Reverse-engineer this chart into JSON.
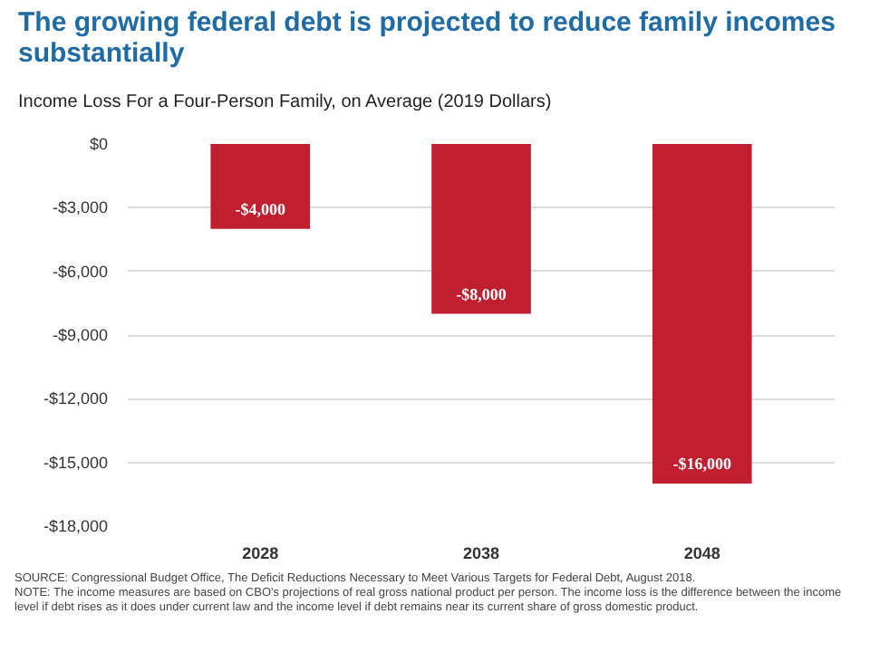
{
  "chart_data": {
    "type": "bar",
    "title": "The growing federal debt is projected to reduce family incomes substantially",
    "subtitle": "Income Loss For a Four-Person Family, on Average (2019 Dollars)",
    "categories": [
      "2028",
      "2038",
      "2048"
    ],
    "values": [
      -4000,
      -8000,
      -16000
    ],
    "value_labels": [
      "-$4,000",
      "-$8,000",
      "-$16,000"
    ],
    "color": "#c01f2f",
    "ylim": [
      -18000,
      0
    ],
    "yticks": [
      {
        "value": -18000,
        "label": "-$18,000"
      },
      {
        "value": -15000,
        "label": "-$15,000"
      },
      {
        "value": -12000,
        "label": "-$12,000"
      },
      {
        "value": -9000,
        "label": "-$9,000"
      },
      {
        "value": -6000,
        "label": "-$6,000"
      },
      {
        "value": -3000,
        "label": "-$3,000"
      },
      {
        "value": 0,
        "label": "$0"
      }
    ],
    "grid": "y",
    "annotations": [
      "SOURCE: Congressional Budget Office, The Deficit Reductions Necessary to Meet Various Targets for Federal Debt, August 2018.",
      "NOTE: The income measures are based on CBO's projections of real gross national product per person. The income loss is the difference between the income level if debt rises as it does under current law and the income level if debt remains near its current share of gross domestic product."
    ]
  }
}
